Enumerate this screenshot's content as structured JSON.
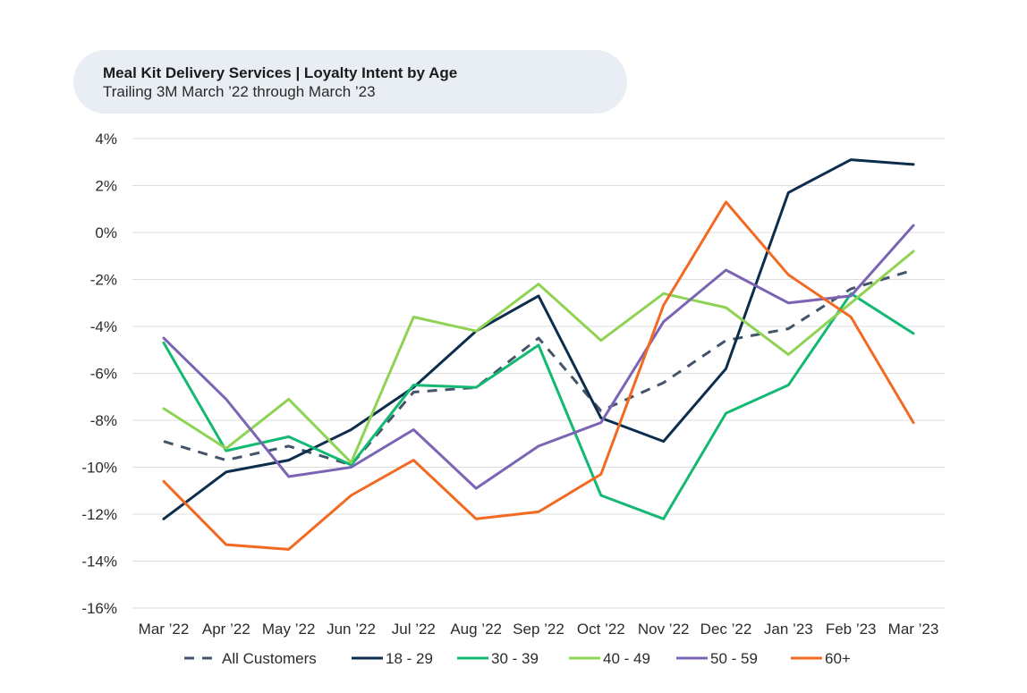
{
  "chart_data": {
    "type": "line",
    "title": "Meal Kit Delivery Services | Loyalty Intent by Age",
    "subtitle": "Trailing 3M March ’22 through March ’23",
    "xlabel": "",
    "ylabel": "",
    "ylim": [
      -16,
      4
    ],
    "yticks": [
      "4%",
      "2%",
      "0%",
      "-2%",
      "-4%",
      "-6%",
      "-8%",
      "-10%",
      "-12%",
      "-14%",
      "-16%"
    ],
    "ytick_values": [
      4,
      2,
      0,
      -2,
      -4,
      -6,
      -8,
      -10,
      -12,
      -14,
      -16
    ],
    "categories": [
      "Mar ’22",
      "Apr ’22",
      "May ’22",
      "Jun ’22",
      "Jul ’22",
      "Aug ’22",
      "Sep ’22",
      "Oct ’22",
      "Nov ’22",
      "Dec ’22",
      "Jan ’23",
      "Feb ’23",
      "Mar ’23"
    ],
    "grid": true,
    "legend_position": "bottom",
    "series": [
      {
        "name": "All Customers",
        "color": "#44546a",
        "dashed": true,
        "values": [
          -8.9,
          -9.7,
          -9.1,
          -9.9,
          -6.8,
          -6.6,
          -4.5,
          -7.6,
          -6.4,
          -4.6,
          -4.1,
          -2.4,
          -1.6
        ]
      },
      {
        "name": "18 - 29",
        "color": "#0d2d4c",
        "dashed": false,
        "values": [
          -12.2,
          -10.2,
          -9.7,
          -8.4,
          -6.6,
          -4.2,
          -2.7,
          -7.9,
          -8.9,
          -5.8,
          1.7,
          3.1,
          2.9
        ]
      },
      {
        "name": "30 - 39",
        "color": "#13b873",
        "dashed": false,
        "values": [
          -4.7,
          -9.3,
          -8.7,
          -9.9,
          -6.5,
          -6.6,
          -4.8,
          -11.2,
          -12.2,
          -7.7,
          -6.5,
          -2.6,
          -4.3
        ]
      },
      {
        "name": "40 - 49",
        "color": "#8ed353",
        "dashed": false,
        "values": [
          -7.5,
          -9.2,
          -7.1,
          -9.8,
          -3.6,
          -4.2,
          -2.2,
          -4.6,
          -2.6,
          -3.2,
          -5.2,
          -3.0,
          -0.8
        ]
      },
      {
        "name": "50 - 59",
        "color": "#7b64b4",
        "dashed": false,
        "values": [
          -4.5,
          -7.1,
          -10.4,
          -10.0,
          -8.4,
          -10.9,
          -9.1,
          -8.1,
          -3.8,
          -1.6,
          -3.0,
          -2.7,
          0.3
        ]
      },
      {
        "name": "60+",
        "color": "#f26a21",
        "dashed": false,
        "values": [
          -10.6,
          -13.3,
          -13.5,
          -11.2,
          -9.7,
          -12.2,
          -11.9,
          -10.3,
          -3.1,
          1.3,
          -1.8,
          -3.6,
          -8.1
        ]
      }
    ]
  }
}
